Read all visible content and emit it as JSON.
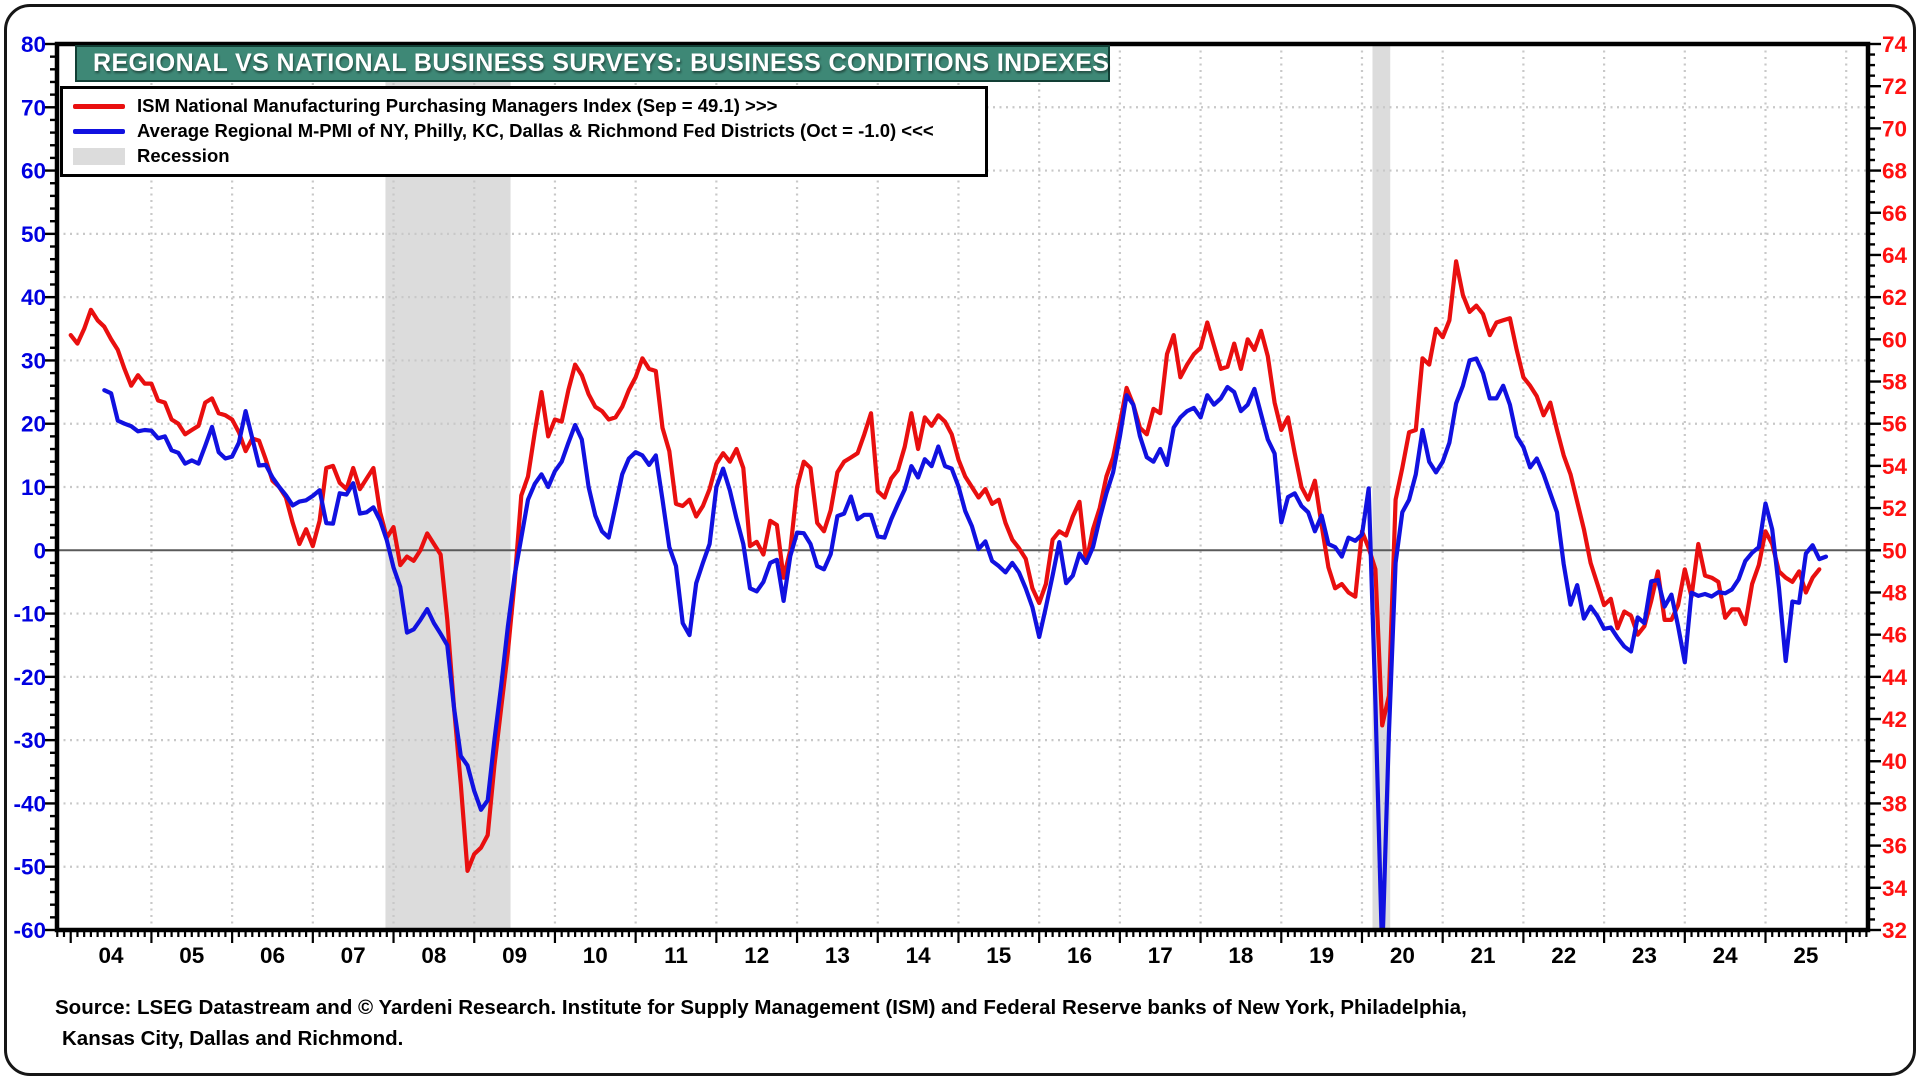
{
  "title": {
    "text": "REGIONAL VS NATIONAL BUSINESS SURVEYS: BUSINESS CONDITIONS INDEXES"
  },
  "banner": {
    "background": "#3E8876",
    "border": "#123F35",
    "text_color": "#FFFFFF"
  },
  "legend": {
    "items": [
      {
        "label": "ISM National Manufacturing Purchasing Managers Index (Sep = 49.1) >>>",
        "swatch": "line",
        "color": "#E90F0F"
      },
      {
        "label": "Average Regional M-PMI of NY, Philly, KC, Dallas & Richmond Fed Districts (Oct = -1.0) <<<",
        "swatch": "line",
        "color": "#1111E0"
      },
      {
        "label": "Recession",
        "swatch": "box",
        "color": "#DCDCDC"
      }
    ]
  },
  "source": {
    "line1": "Source: LSEG Datastream and © Yardeni Research. Institute for Supply Management (ISM) and Federal Reserve banks of New York, Philadelphia,",
    "line2": "Kansas City, Dallas and Richmond."
  },
  "chart_data": {
    "type": "line",
    "title": "REGIONAL VS NATIONAL BUSINESS SURVEYS: BUSINESS CONDITIONS INDEXES",
    "x_axis": {
      "min": 2003.83,
      "max": 2026.27,
      "year_label_start": 2004,
      "year_labels": [
        "04",
        "05",
        "06",
        "07",
        "08",
        "09",
        "10",
        "11",
        "12",
        "13",
        "14",
        "15",
        "16",
        "17",
        "18",
        "19",
        "20",
        "21",
        "22",
        "23",
        "24",
        "25"
      ],
      "label_color": "#000000"
    },
    "left_axis": {
      "min": -60,
      "max": 80,
      "major": 10,
      "minor": 2,
      "ticks": [
        80,
        70,
        60,
        50,
        40,
        30,
        20,
        10,
        0,
        -10,
        -20,
        -30,
        -40,
        -50,
        -60
      ],
      "label_color": "#0000E0"
    },
    "right_axis": {
      "min": 32,
      "max": 74,
      "major": 2,
      "minor": 0.5,
      "ticks": [
        74,
        72,
        70,
        68,
        66,
        64,
        62,
        60,
        58,
        56,
        54,
        52,
        50,
        48,
        46,
        44,
        42,
        40,
        38,
        36,
        34,
        32
      ],
      "label_color": "#FF1010"
    },
    "grid": {
      "color": "#C8C8C8",
      "zero_line_color": "#5A5A5A",
      "border_color": "#000000"
    },
    "recession_color": "#DCDCDC",
    "recessions": [
      {
        "from": 2007.9,
        "to": 2009.45
      },
      {
        "from": 2020.13,
        "to": 2020.35
      }
    ],
    "series": [
      {
        "name": "ISM National Manufacturing Purchasing Managers Index (Sep = 49.1) >>>",
        "axis": "right",
        "color": "#E90F0F",
        "frequency": "monthly",
        "start_year": 2004,
        "start_month": 1,
        "values": [
          60.2,
          59.8,
          60.5,
          61.4,
          60.9,
          60.6,
          60.0,
          59.5,
          58.6,
          57.8,
          58.3,
          57.9,
          57.9,
          57.1,
          57.0,
          56.2,
          56.0,
          55.5,
          55.7,
          55.9,
          57.0,
          57.2,
          56.5,
          56.4,
          56.2,
          55.6,
          54.7,
          55.3,
          55.2,
          54.3,
          53.3,
          53.0,
          52.5,
          51.3,
          50.3,
          51.0,
          50.2,
          51.4,
          53.9,
          54.0,
          53.2,
          52.9,
          53.9,
          52.9,
          53.4,
          53.9,
          51.8,
          50.6,
          51.1,
          49.3,
          49.7,
          49.5,
          50.0,
          50.8,
          50.3,
          49.8,
          46.7,
          42.5,
          38.9,
          34.8,
          35.6,
          35.9,
          36.5,
          39.8,
          42.5,
          45.2,
          48.5,
          52.6,
          53.5,
          55.6,
          57.5,
          55.4,
          56.2,
          56.1,
          57.6,
          58.8,
          58.3,
          57.4,
          56.8,
          56.6,
          56.2,
          56.3,
          56.8,
          57.6,
          58.2,
          59.1,
          58.6,
          58.5,
          55.8,
          54.7,
          52.2,
          52.1,
          52.4,
          51.6,
          52.1,
          52.9,
          54.1,
          54.6,
          54.2,
          54.8,
          53.9,
          50.2,
          50.4,
          49.8,
          51.4,
          51.2,
          48.7,
          50.0,
          53.0,
          54.2,
          53.9,
          51.3,
          50.9,
          51.9,
          53.7,
          54.2,
          54.4,
          54.6,
          55.5,
          56.5,
          52.8,
          52.5,
          53.4,
          53.8,
          54.9,
          56.5,
          54.8,
          56.3,
          55.9,
          56.4,
          56.1,
          55.5,
          54.3,
          53.5,
          53.0,
          52.5,
          52.9,
          52.2,
          52.4,
          51.3,
          50.5,
          50.1,
          49.6,
          48.2,
          47.5,
          48.4,
          50.5,
          50.9,
          50.7,
          51.6,
          52.3,
          49.4,
          51.0,
          52.0,
          53.5,
          54.4,
          56.0,
          57.7,
          56.9,
          55.8,
          55.5,
          56.7,
          56.5,
          59.3,
          60.2,
          58.2,
          58.8,
          59.3,
          59.6,
          60.8,
          59.7,
          58.6,
          58.7,
          59.8,
          58.6,
          60.0,
          59.5,
          60.4,
          59.2,
          57.0,
          55.7,
          56.3,
          54.6,
          53.0,
          52.4,
          53.3,
          51.2,
          49.2,
          48.2,
          48.4,
          48.0,
          47.8,
          50.9,
          50.1,
          49.1,
          41.7,
          43.1,
          52.4,
          53.9,
          55.6,
          55.7,
          59.1,
          58.8,
          60.5,
          60.1,
          60.9,
          63.7,
          62.1,
          61.3,
          61.6,
          61.2,
          60.2,
          60.8,
          60.9,
          61.0,
          59.5,
          58.2,
          57.8,
          57.3,
          56.4,
          57.0,
          55.7,
          54.5,
          53.6,
          52.3,
          51.0,
          49.4,
          48.4,
          47.4,
          47.7,
          46.3,
          47.1,
          46.9,
          46.0,
          46.4,
          47.6,
          49.0,
          46.7,
          46.7,
          47.4,
          49.1,
          47.8,
          50.3,
          48.8,
          48.7,
          48.5,
          46.8,
          47.2,
          47.2,
          46.5,
          48.4,
          49.3,
          50.9,
          50.3,
          49.0,
          48.7,
          48.5,
          49.0,
          48.0,
          48.7,
          49.1
        ]
      },
      {
        "name": "Average Regional M-PMI of NY, Philly, KC, Dallas & Richmond Fed Districts (Oct = -1.0) <<<",
        "axis": "left",
        "color": "#1111E0",
        "frequency": "monthly",
        "start_year": 2004,
        "start_month": 6,
        "values": [
          25.3,
          24.8,
          20.5,
          20.0,
          19.6,
          18.8,
          19.0,
          18.9,
          17.7,
          18.0,
          15.8,
          15.4,
          13.7,
          14.2,
          13.7,
          16.5,
          19.5,
          15.5,
          14.5,
          14.8,
          17.0,
          22.0,
          17.7,
          13.4,
          13.5,
          11.5,
          10.0,
          8.7,
          7.1,
          7.7,
          7.9,
          8.6,
          9.5,
          4.3,
          4.2,
          9.0,
          8.8,
          10.6,
          5.8,
          6.0,
          6.8,
          4.7,
          1.6,
          -2.7,
          -5.8,
          -13.0,
          -12.5,
          -11.0,
          -9.3,
          -11.5,
          -13.2,
          -15.0,
          -25.0,
          -32.5,
          -34.0,
          -38.0,
          -41.0,
          -39.5,
          -30.0,
          -21.5,
          -12.0,
          -4.0,
          2.0,
          8.0,
          10.5,
          12.0,
          10.0,
          12.5,
          14.0,
          17.0,
          19.8,
          17.5,
          10.0,
          5.5,
          3.0,
          2.0,
          7.0,
          12.0,
          14.5,
          15.5,
          15.0,
          13.5,
          15.0,
          8.0,
          0.5,
          -2.5,
          -11.5,
          -13.4,
          -5.2,
          -2.0,
          1.0,
          10.0,
          12.9,
          9.5,
          5.0,
          1.0,
          -6.0,
          -6.5,
          -5.0,
          -2.0,
          -1.5,
          -8.0,
          -0.9,
          2.8,
          2.7,
          1.0,
          -2.5,
          -3.0,
          -0.6,
          5.4,
          5.8,
          8.5,
          4.9,
          5.6,
          5.6,
          2.2,
          2.0,
          4.9,
          7.3,
          9.6,
          13.3,
          11.5,
          14.4,
          13.3,
          16.4,
          13.3,
          12.9,
          10.1,
          6.2,
          3.8,
          0.2,
          1.4,
          -1.7,
          -2.5,
          -3.5,
          -2.0,
          -3.5,
          -6.0,
          -9.0,
          -13.7,
          -9.0,
          -4.0,
          1.3,
          -5.2,
          -4.0,
          -0.5,
          -2.0,
          0.5,
          5.0,
          9.0,
          12.3,
          18.0,
          24.5,
          23.0,
          18.0,
          14.7,
          14.0,
          16.0,
          13.5,
          19.4,
          21.0,
          22.0,
          22.5,
          21.0,
          24.5,
          23.0,
          24.0,
          25.8,
          25.0,
          22.0,
          23.0,
          25.5,
          21.5,
          17.5,
          15.3,
          4.4,
          8.4,
          9.0,
          7.0,
          6.0,
          3.0,
          5.5,
          1.0,
          0.5,
          -1.0,
          2.0,
          1.5,
          2.5,
          9.8,
          -24.0,
          -64.0,
          -29.0,
          -2.0,
          6.0,
          8.0,
          12.0,
          19.0,
          14.0,
          12.3,
          14.0,
          17.0,
          23.2,
          26.0,
          30.0,
          30.3,
          28.0,
          24.0,
          24.0,
          26.0,
          23.0,
          18.0,
          16.3,
          13.1,
          14.5,
          12.0,
          9.0,
          6.0,
          -2.2,
          -8.6,
          -5.5,
          -10.8,
          -8.9,
          -10.4,
          -12.4,
          -12.2,
          -13.8,
          -15.2,
          -16.0,
          -10.6,
          -11.5,
          -4.9,
          -4.7,
          -8.9,
          -7.0,
          -12.0,
          -17.7,
          -6.7,
          -7.2,
          -6.9,
          -7.3,
          -6.6,
          -6.8,
          -6.2,
          -4.6,
          -1.7,
          -0.4,
          0.5,
          7.4,
          3.3,
          -6.0,
          -17.5,
          -8.1,
          -8.3,
          -0.5,
          0.8,
          -1.4,
          -1.0
        ]
      }
    ]
  }
}
